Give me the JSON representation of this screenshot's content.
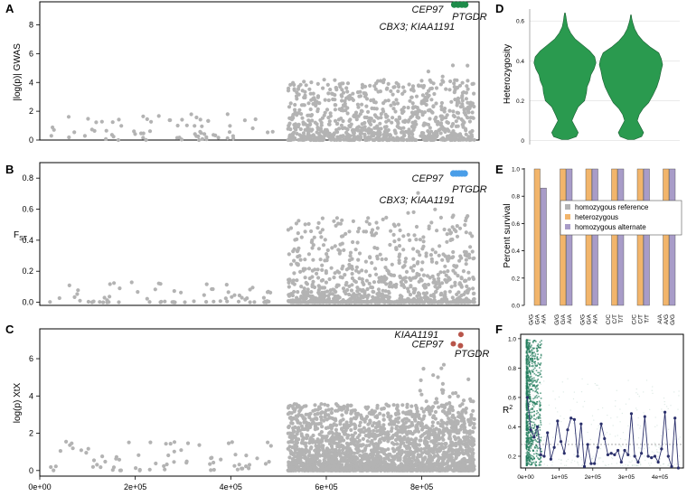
{
  "panels": [
    {
      "letter": "A"
    },
    {
      "letter": "B"
    },
    {
      "letter": "C"
    },
    {
      "letter": "D"
    },
    {
      "letter": "E"
    },
    {
      "letter": "F"
    }
  ],
  "chart_data": [
    {
      "id": "A",
      "type": "scatter",
      "title": "",
      "ylabel": "|log(p)| GWAS",
      "xlim": [
        0,
        920000
      ],
      "ylim": [
        0,
        9.6
      ],
      "yticks": [
        "0",
        "2",
        "4",
        "6",
        "8"
      ],
      "point_color": "#b3b3b3",
      "highlight_color": "#1e8c4a",
      "annotations": [
        {
          "text": "CEP97",
          "x": 845000,
          "y": 9.1
        },
        {
          "text": "PTGDR",
          "x": 900000,
          "y": 8.6
        },
        {
          "text": "CBX3; KIAA1191",
          "x": 790000,
          "y": 7.9
        }
      ],
      "highlights": [
        {
          "x": 868000,
          "y": 9.4
        },
        {
          "x": 876000,
          "y": 9.4
        },
        {
          "x": 884000,
          "y": 9.4
        },
        {
          "x": 891000,
          "y": 9.4
        }
      ]
    },
    {
      "id": "B",
      "type": "scatter",
      "title": "",
      "ylabel_main": "F",
      "ylabel_sub": "ST",
      "xlim": [
        0,
        920000
      ],
      "ylim": [
        -0.02,
        0.9
      ],
      "yticks": [
        "0.0",
        "0.2",
        "0.4",
        "0.6",
        "0.8"
      ],
      "point_color": "#b3b3b3",
      "highlight_color": "#4a9ee8",
      "annotations": [
        {
          "text": "CEP97",
          "x": 845000,
          "y": 0.8
        },
        {
          "text": "PTGDR",
          "x": 900000,
          "y": 0.73
        },
        {
          "text": "CBX3; KIAA1191",
          "x": 790000,
          "y": 0.66
        }
      ],
      "highlights": [
        {
          "x": 866000,
          "y": 0.83
        },
        {
          "x": 872000,
          "y": 0.83
        },
        {
          "x": 878000,
          "y": 0.83
        },
        {
          "x": 884000,
          "y": 0.83
        },
        {
          "x": 890000,
          "y": 0.83
        }
      ]
    },
    {
      "id": "C",
      "type": "scatter",
      "title": "",
      "ylabel": "log(p) XtX",
      "xlim": [
        0,
        920000
      ],
      "ylim": [
        -0.3,
        7.6
      ],
      "yticks": [
        "0",
        "2",
        "4",
        "6"
      ],
      "xticks": [
        "0e+00",
        "2e+05",
        "4e+05",
        "6e+05",
        "8e+05"
      ],
      "point_color": "#b3b3b3",
      "highlight_color": "#b8554a",
      "annotations": [
        {
          "text": "KIAA1191",
          "x": 835000,
          "y": 7.3
        },
        {
          "text": "CEP97",
          "x": 845000,
          "y": 6.8
        },
        {
          "text": "PTGDR",
          "x": 905000,
          "y": 6.3
        }
      ],
      "highlights": [
        {
          "x": 882000,
          "y": 7.3
        },
        {
          "x": 866000,
          "y": 6.8
        },
        {
          "x": 881000,
          "y": 6.7
        }
      ]
    },
    {
      "id": "D",
      "type": "violin",
      "ylabel": "Heterozygosity",
      "ylim": [
        -0.02,
        0.66
      ],
      "yticks": [
        "0",
        "0.2",
        "0.4",
        "0.6"
      ],
      "fill_color": "#2a9a4f",
      "violins": [
        {
          "profile": [
            [
              0.005,
              0.1
            ],
            [
              0.02,
              0.36
            ],
            [
              0.04,
              0.42
            ],
            [
              0.07,
              0.32
            ],
            [
              0.1,
              0.22
            ],
            [
              0.13,
              0.3
            ],
            [
              0.17,
              0.42
            ],
            [
              0.2,
              0.62
            ],
            [
              0.24,
              0.68
            ],
            [
              0.27,
              0.7
            ],
            [
              0.3,
              0.78
            ],
            [
              0.33,
              0.82
            ],
            [
              0.36,
              0.92
            ],
            [
              0.39,
              0.98
            ],
            [
              0.42,
              0.94
            ],
            [
              0.45,
              0.78
            ],
            [
              0.48,
              0.55
            ],
            [
              0.51,
              0.32
            ],
            [
              0.54,
              0.18
            ],
            [
              0.57,
              0.09
            ],
            [
              0.6,
              0.05
            ],
            [
              0.625,
              0.03
            ],
            [
              0.64,
              0.01
            ]
          ]
        },
        {
          "profile": [
            [
              0.005,
              0.1
            ],
            [
              0.02,
              0.34
            ],
            [
              0.04,
              0.4
            ],
            [
              0.07,
              0.3
            ],
            [
              0.1,
              0.2
            ],
            [
              0.13,
              0.26
            ],
            [
              0.16,
              0.38
            ],
            [
              0.19,
              0.56
            ],
            [
              0.23,
              0.7
            ],
            [
              0.27,
              0.82
            ],
            [
              0.31,
              0.9
            ],
            [
              0.35,
              0.95
            ],
            [
              0.38,
              1.0
            ],
            [
              0.41,
              0.96
            ],
            [
              0.44,
              0.88
            ],
            [
              0.47,
              0.6
            ],
            [
              0.5,
              0.38
            ],
            [
              0.53,
              0.22
            ],
            [
              0.56,
              0.12
            ],
            [
              0.59,
              0.06
            ],
            [
              0.61,
              0.03
            ],
            [
              0.63,
              0.01
            ]
          ]
        }
      ]
    },
    {
      "id": "E",
      "type": "bar",
      "ylabel": "Percent survival",
      "ylim": [
        0,
        1.0
      ],
      "yticks": [
        "0.0",
        "0.2",
        "0.4",
        "0.6",
        "0.8",
        "1.0"
      ],
      "groups": [
        {
          "labels": [
            "G/G",
            "G/A",
            "A/A"
          ],
          "values": [
            null,
            1.0,
            0.86
          ]
        },
        {
          "labels": [
            "G/G",
            "G/A",
            "A/A"
          ],
          "values": [
            null,
            1.0,
            1.0
          ]
        },
        {
          "labels": [
            "G/G",
            "G/A",
            "A/A"
          ],
          "values": [
            null,
            1.0,
            1.0
          ]
        },
        {
          "labels": [
            "C/C",
            "C/T",
            "T/T"
          ],
          "values": [
            null,
            1.0,
            1.0
          ]
        },
        {
          "labels": [
            "C/C",
            "C/T",
            "T/T"
          ],
          "values": [
            null,
            1.0,
            1.0
          ]
        },
        {
          "labels": [
            "A/A",
            "A/G",
            "G/G"
          ],
          "values": [
            null,
            1.0,
            1.0
          ]
        }
      ],
      "legend": [
        {
          "label": "homozygous reference",
          "color": "#b3b3b3"
        },
        {
          "label": "heterozygous",
          "color": "#f2b56b"
        },
        {
          "label": "homozygous alternate",
          "color": "#a89cc8"
        }
      ]
    },
    {
      "id": "F",
      "type": "line",
      "ylabel_main": "R",
      "ylabel_sup": "2",
      "xlim": [
        -15000,
        470000
      ],
      "ylim": [
        0.12,
        1.03
      ],
      "xticks": [
        "0e+00",
        "1e+05",
        "2e+05",
        "3e+05",
        "4e+05"
      ],
      "yticks": [
        "0.2",
        "0.4",
        "0.6",
        "0.8",
        "1.0"
      ],
      "scatter_color": "#1f7a5a",
      "line_color": "#2a2f6b",
      "mean_line": 0.28,
      "series": {
        "x": [
          5000,
          15000,
          25000,
          35000,
          45000,
          55000,
          65000,
          75000,
          85000,
          95000,
          105000,
          115000,
          125000,
          135000,
          145000,
          155000,
          165000,
          175000,
          185000,
          195000,
          205000,
          215000,
          225000,
          235000,
          245000,
          255000,
          265000,
          275000,
          285000,
          295000,
          305000,
          315000,
          325000,
          335000,
          345000,
          355000,
          365000,
          375000,
          385000,
          395000,
          405000,
          415000,
          425000,
          435000,
          445000,
          455000
        ],
        "y": [
          0.6,
          0.38,
          0.33,
          0.4,
          0.21,
          0.2,
          0.36,
          0.18,
          0.26,
          0.44,
          0.3,
          0.22,
          0.38,
          0.46,
          0.45,
          0.2,
          0.42,
          0.13,
          0.28,
          0.15,
          0.15,
          0.26,
          0.42,
          0.32,
          0.21,
          0.22,
          0.21,
          0.24,
          0.16,
          0.24,
          0.21,
          0.49,
          0.2,
          0.16,
          0.22,
          0.47,
          0.2,
          0.19,
          0.2,
          0.16,
          0.25,
          0.5,
          0.2,
          0.13,
          0.46,
          0.12
        ]
      }
    }
  ],
  "axis_x_labels": [
    "0e+00",
    "2e+05",
    "4e+05",
    "6e+05",
    "8e+05"
  ]
}
